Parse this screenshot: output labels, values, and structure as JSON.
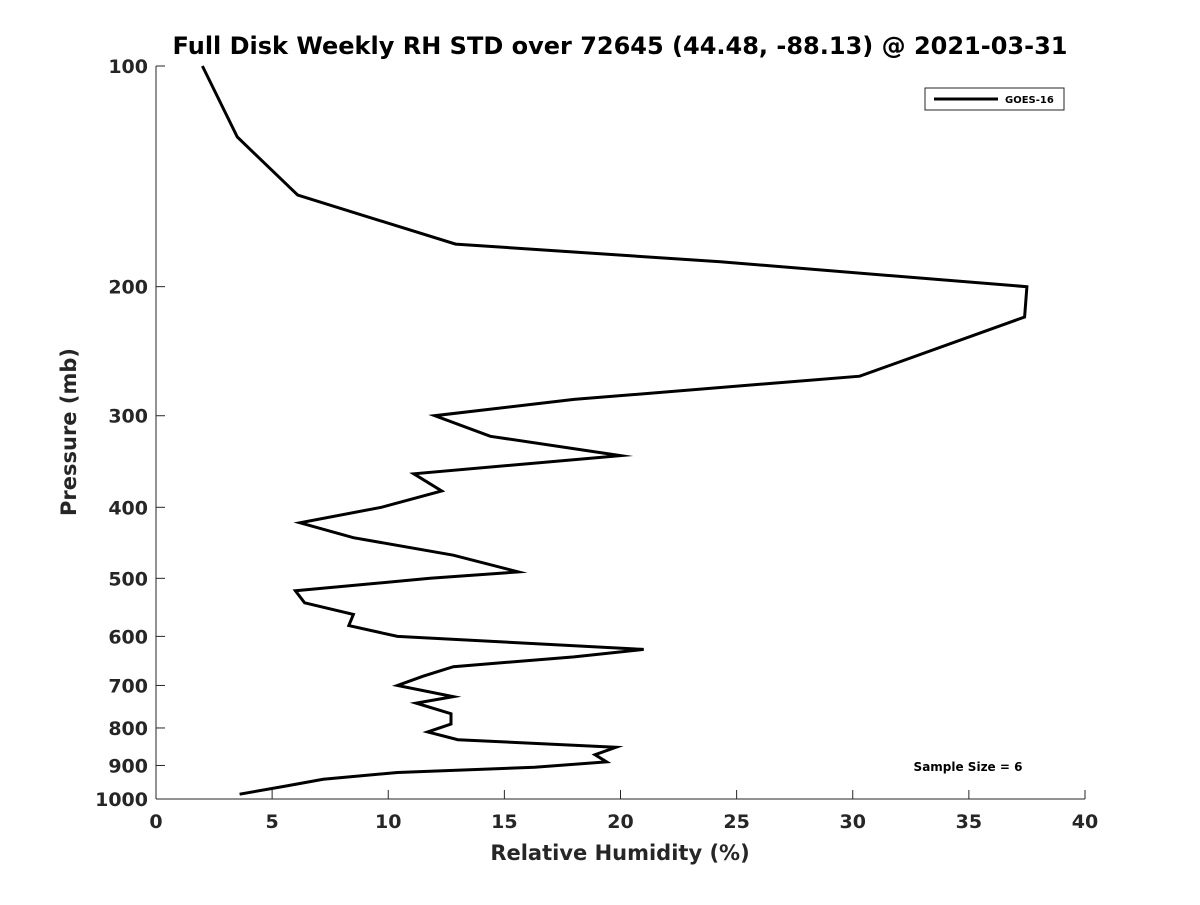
{
  "chart_data": {
    "type": "line",
    "title": "Full Disk Weekly RH STD over 72645 (44.48, -88.13) @ 2021-03-31",
    "xlabel": "Relative Humidity (%)",
    "ylabel": "Pressure (mb)",
    "xlim": [
      0,
      40
    ],
    "ylim": [
      100,
      1000
    ],
    "yscale": "log",
    "y_reversed": true,
    "xticks": [
      0,
      5,
      10,
      15,
      20,
      25,
      30,
      35,
      40
    ],
    "xtick_labels": [
      "0",
      "5",
      "10",
      "15",
      "20",
      "25",
      "30",
      "35",
      "40"
    ],
    "yticks": [
      100,
      200,
      300,
      400,
      500,
      600,
      700,
      800,
      900,
      1000
    ],
    "ytick_labels": [
      "100",
      "200",
      "300",
      "400",
      "500",
      "600",
      "700",
      "800",
      "900",
      "1000"
    ],
    "grid": false,
    "legend_position": "top-right",
    "annotation": "Sample Size = 6",
    "series": [
      {
        "name": "GOES-16",
        "color": "#000000",
        "x": [
          2.0,
          3.5,
          6.1,
          12.9,
          24.3,
          37.5,
          37.4,
          30.3,
          18.0,
          12.0,
          14.4,
          20.0,
          11.1,
          12.3,
          9.7,
          6.2,
          8.5,
          12.8,
          15.6,
          11.8,
          6.0,
          6.4,
          8.5,
          8.3,
          10.4,
          21.0,
          18.0,
          12.8,
          11.5,
          10.4,
          12.8,
          11.2,
          12.7,
          12.7,
          11.7,
          13.0,
          19.8,
          18.9,
          19.4,
          16.3,
          10.4,
          7.2,
          5.6,
          3.6
        ],
        "y": [
          100,
          125,
          150,
          175,
          185,
          200,
          220,
          265,
          285,
          300,
          320,
          340,
          360,
          380,
          400,
          420,
          440,
          465,
          490,
          500,
          520,
          540,
          560,
          580,
          600,
          625,
          640,
          660,
          680,
          700,
          725,
          740,
          765,
          790,
          810,
          830,
          850,
          870,
          890,
          905,
          920,
          940,
          960,
          985
        ]
      }
    ]
  }
}
